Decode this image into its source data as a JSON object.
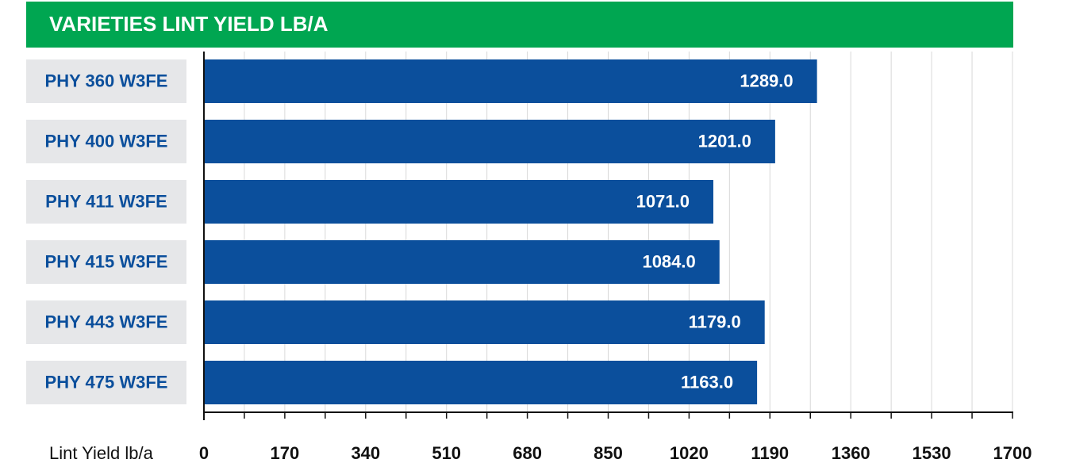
{
  "chart_data": {
    "type": "hbar",
    "title": "VARIETIES LINT YIELD LB/A",
    "categories": [
      "PHY 360 W3FE",
      "PHY 400 W3FE",
      "PHY 411 W3FE",
      "PHY 415 W3FE",
      "PHY 443 W3FE",
      "PHY 475 W3FE"
    ],
    "values": [
      1289,
      1201,
      1071,
      1084,
      1179,
      1163
    ],
    "value_labels": [
      "1289.0",
      "1201.0",
      "1071.0",
      "1084.0",
      "1179.0",
      "1163.0"
    ],
    "color": "#0b4f9c",
    "xlabel": "Lint Yield lb/a",
    "xlim": [
      0,
      1700
    ],
    "xticks": [
      0,
      170,
      340,
      510,
      680,
      850,
      1020,
      1190,
      1360,
      1530,
      1700
    ],
    "xminorticks": [
      85,
      255,
      425,
      595,
      765,
      935,
      1105,
      1275,
      1445,
      1615
    ],
    "grid": true
  }
}
